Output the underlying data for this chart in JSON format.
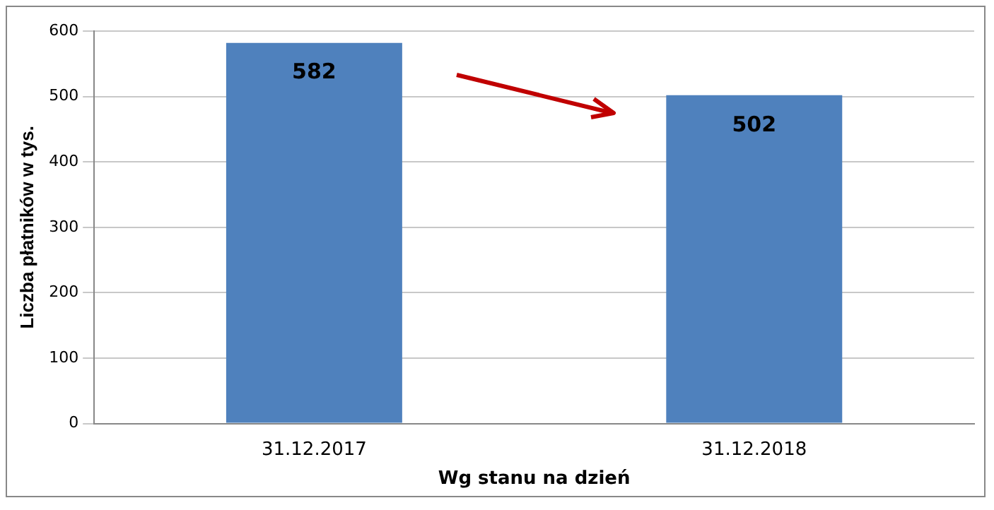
{
  "chart_data": {
    "type": "bar",
    "xlabel": "Wg stanu na dzień",
    "ylabel": "Liczba płatników w tys.",
    "categories": [
      "31.12.2017",
      "31.12.2018"
    ],
    "values": [
      582,
      502
    ],
    "color": "#4f81bd",
    "ylim": [
      0,
      600
    ],
    "yticks": [
      0,
      100,
      200,
      300,
      400,
      500,
      600
    ],
    "grid": "y",
    "legend": false,
    "data_labels": true
  }
}
